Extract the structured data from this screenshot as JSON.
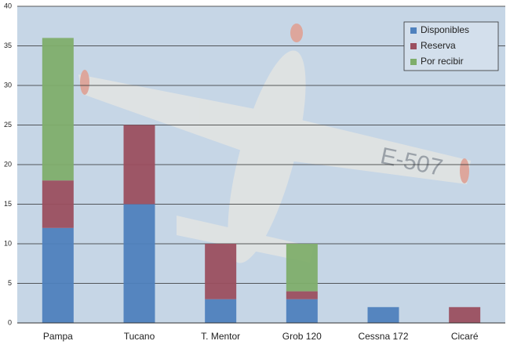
{
  "chart_data": {
    "type": "stacked-bar",
    "categories": [
      "Pampa",
      "Tucano",
      "T. Mentor",
      "Grob 120",
      "Cessna 172",
      "Cicaré"
    ],
    "series": [
      {
        "name": "Disponibles",
        "color": "#4f81bd",
        "values": [
          12,
          15,
          3,
          3,
          2,
          0
        ]
      },
      {
        "name": "Reserva",
        "color": "#9b4f5f",
        "values": [
          6,
          10,
          7,
          1,
          0,
          2
        ]
      },
      {
        "name": "Por recibir",
        "color": "#7fae6b",
        "values": [
          18,
          0,
          0,
          6,
          0,
          0
        ]
      }
    ],
    "ylim": [
      0,
      40
    ],
    "yticks": [
      0,
      5,
      10,
      15,
      20,
      25,
      30,
      35,
      40
    ],
    "grid": true,
    "legend": "top-right"
  }
}
